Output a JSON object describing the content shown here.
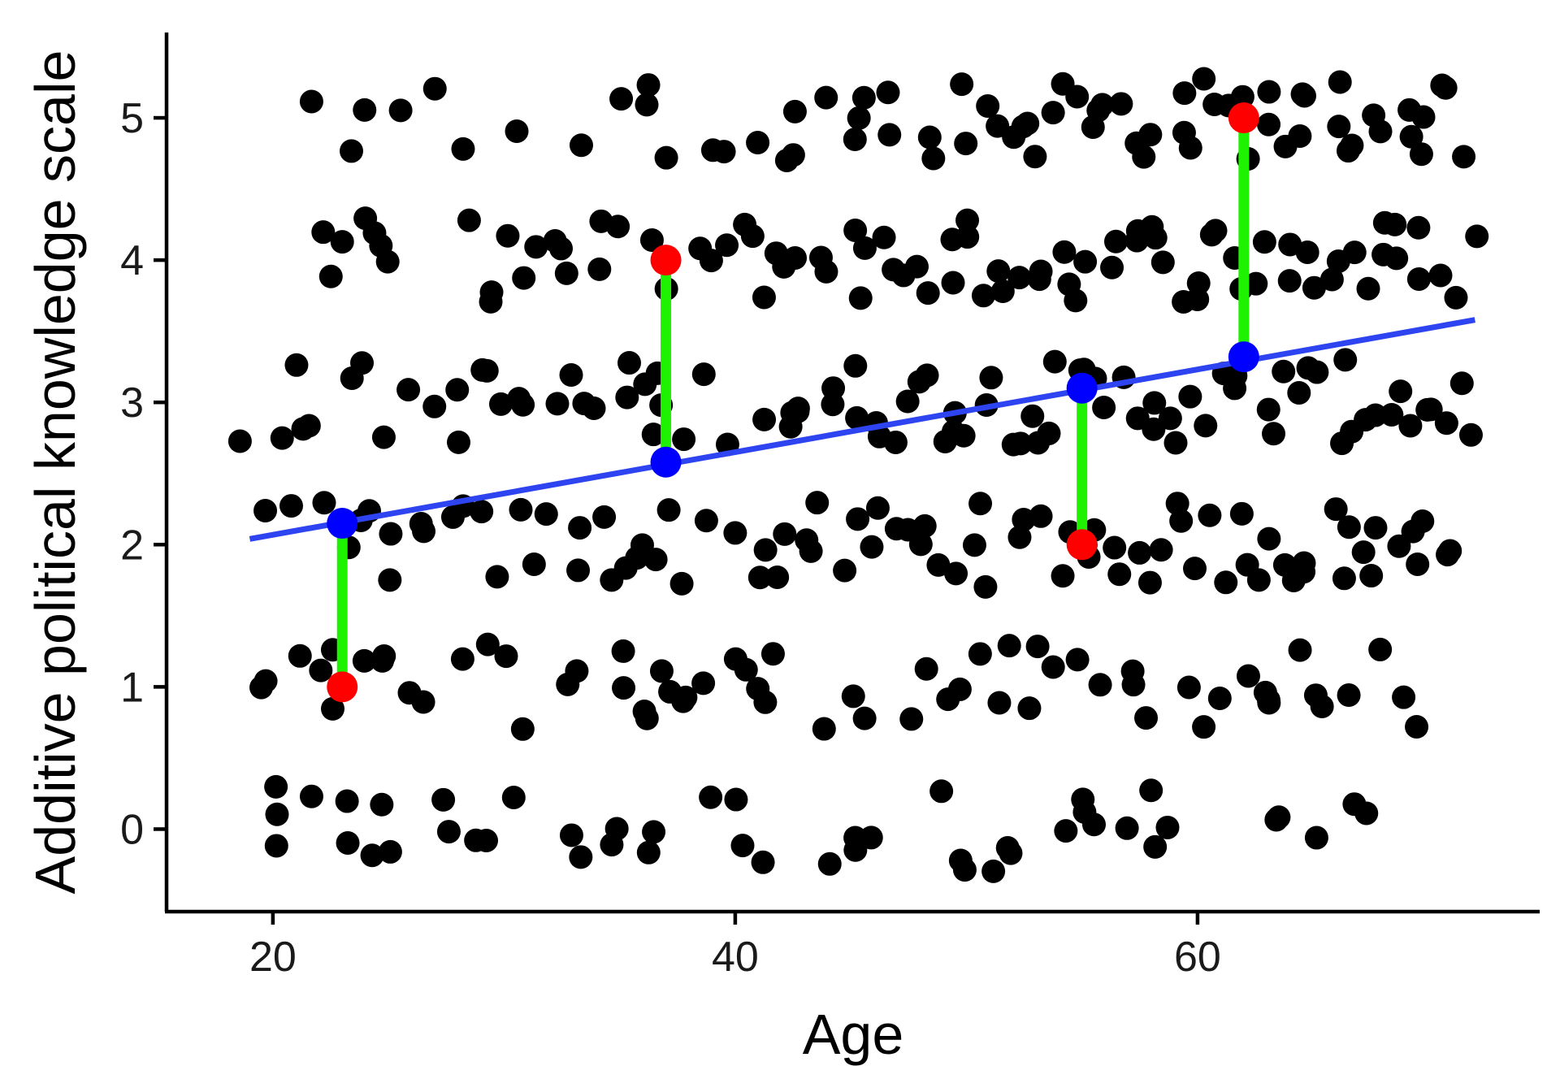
{
  "chart_data": {
    "type": "scatter",
    "title": "",
    "xlabel": "Age",
    "ylabel": "Additive political knowledge scale",
    "xlim": [
      15.4,
      74.8
    ],
    "ylim": [
      -0.58,
      5.6
    ],
    "xticks": [
      20,
      40,
      60
    ],
    "yticks": [
      0,
      1,
      2,
      3,
      4,
      5
    ],
    "grid": false,
    "legend": "none",
    "jitter": {
      "x": 0.5,
      "y": 0.3
    },
    "colors": {
      "points": "#000000",
      "regression_line": "#2e44f0",
      "residual": "#1ef200",
      "observed": "#ff0000",
      "fitted": "#0000ff",
      "axis": "#000000"
    },
    "regression_line": {
      "x": [
        19,
        72
      ],
      "y": [
        2.04,
        3.58
      ]
    },
    "highlighted": [
      {
        "x": 23,
        "observed": 1,
        "fitted": 2.15
      },
      {
        "x": 37,
        "observed": 4,
        "fitted": 2.58
      },
      {
        "x": 55,
        "observed": 2,
        "fitted": 3.1
      },
      {
        "x": 62,
        "observed": 5,
        "fitted": 3.32
      }
    ],
    "points_by_level": [
      {
        "y": 0,
        "ages": [
          20,
          20,
          20,
          22,
          23,
          23,
          24,
          25,
          25,
          27,
          28,
          29,
          29,
          30,
          33,
          33,
          35,
          35,
          36,
          36,
          39,
          40,
          40,
          41,
          44,
          45,
          45,
          46,
          49,
          50,
          50,
          51,
          52,
          52,
          54,
          55,
          55,
          56,
          57,
          58,
          58,
          59,
          63,
          64,
          65,
          67,
          67
        ]
      },
      {
        "y": 1,
        "ages": [
          19,
          20,
          21,
          22,
          23,
          23,
          24,
          25,
          25,
          26,
          27,
          28,
          29,
          30,
          31,
          33,
          33,
          35,
          35,
          36,
          36,
          37,
          37,
          38,
          38,
          39,
          40,
          40,
          41,
          41,
          42,
          44,
          45,
          46,
          48,
          48,
          49,
          50,
          51,
          51,
          52,
          53,
          53,
          54,
          55,
          56,
          57,
          57,
          58,
          60,
          60,
          61,
          62,
          63,
          63,
          63,
          64,
          65,
          65,
          67,
          68,
          69,
          69
        ]
      },
      {
        "y": 2,
        "ages": [
          20,
          21,
          22,
          23,
          24,
          24,
          25,
          25,
          26,
          27,
          28,
          28,
          29,
          30,
          31,
          31,
          32,
          33,
          33,
          34,
          35,
          35,
          36,
          36,
          37,
          37,
          38,
          39,
          40,
          41,
          41,
          42,
          42,
          43,
          43,
          44,
          45,
          45,
          46,
          46,
          47,
          47,
          48,
          48,
          49,
          50,
          50,
          51,
          51,
          52,
          52,
          53,
          54,
          54,
          55,
          55,
          56,
          56,
          57,
          57,
          58,
          58,
          59,
          59,
          60,
          61,
          61,
          62,
          62,
          63,
          63,
          64,
          64,
          65,
          65,
          66,
          66,
          67,
          67,
          68,
          68,
          69,
          69,
          70,
          70,
          71,
          71
        ]
      },
      {
        "y": 3,
        "ages": [
          19,
          20,
          21,
          21,
          22,
          23,
          24,
          25,
          26,
          27,
          28,
          28,
          29,
          29,
          30,
          31,
          31,
          32,
          33,
          33,
          34,
          35,
          35,
          36,
          36,
          37,
          37,
          38,
          39,
          40,
          41,
          42,
          42,
          43,
          43,
          44,
          44,
          45,
          45,
          46,
          46,
          47,
          47,
          48,
          48,
          49,
          49,
          50,
          50,
          51,
          51,
          52,
          52,
          53,
          53,
          54,
          54,
          55,
          55,
          56,
          56,
          57,
          57,
          58,
          58,
          59,
          59,
          60,
          60,
          61,
          61,
          62,
          62,
          63,
          63,
          64,
          64,
          65,
          65,
          66,
          66,
          67,
          67,
          68,
          68,
          69,
          69,
          70,
          70,
          71,
          71,
          72
        ]
      },
      {
        "y": 4,
        "ages": [
          22,
          23,
          23,
          24,
          24,
          25,
          25,
          28,
          29,
          29,
          30,
          31,
          31,
          32,
          32,
          33,
          34,
          34,
          35,
          36,
          37,
          38,
          39,
          40,
          40,
          41,
          41,
          42,
          42,
          43,
          44,
          44,
          45,
          45,
          46,
          46,
          47,
          47,
          48,
          48,
          49,
          49,
          50,
          50,
          51,
          51,
          52,
          52,
          53,
          53,
          54,
          54,
          55,
          55,
          56,
          56,
          57,
          57,
          58,
          58,
          59,
          59,
          60,
          60,
          61,
          61,
          62,
          62,
          63,
          63,
          64,
          64,
          65,
          65,
          66,
          66,
          67,
          67,
          68,
          68,
          69,
          69,
          70,
          70,
          71,
          71,
          72
        ]
      },
      {
        "y": 5,
        "ages": [
          22,
          23,
          24,
          26,
          27,
          28,
          31,
          33,
          35,
          36,
          36,
          37,
          39,
          40,
          41,
          42,
          43,
          43,
          44,
          45,
          45,
          46,
          47,
          47,
          48,
          49,
          50,
          50,
          51,
          51,
          52,
          52,
          53,
          53,
          54,
          54,
          55,
          55,
          56,
          56,
          57,
          57,
          58,
          58,
          59,
          59,
          60,
          60,
          61,
          61,
          62,
          62,
          63,
          63,
          64,
          64,
          65,
          65,
          66,
          66,
          67,
          67,
          68,
          68,
          69,
          69,
          70,
          70,
          71,
          71,
          72
        ]
      }
    ]
  }
}
